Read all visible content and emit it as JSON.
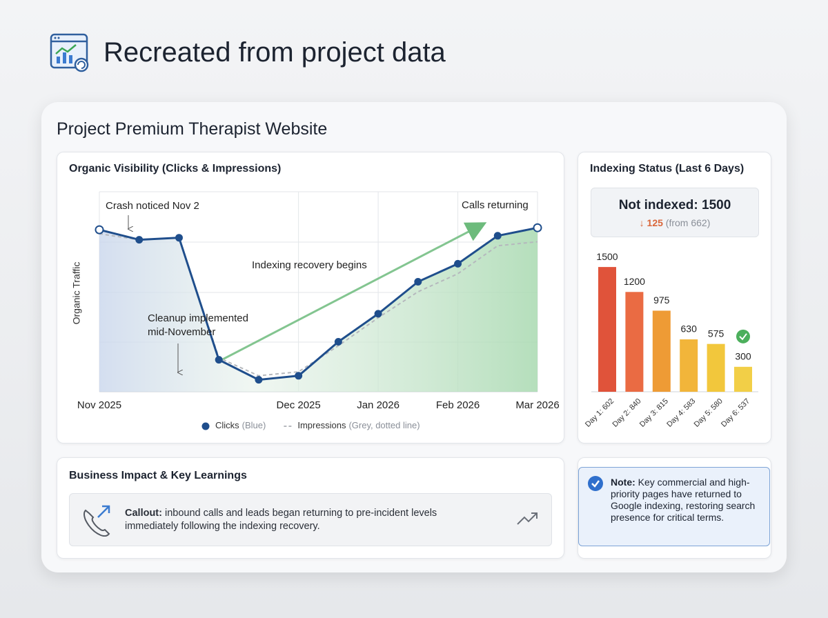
{
  "header": {
    "title": "Recreated from project data"
  },
  "project_title": "Project Premium Therapist Website",
  "chart_data": [
    {
      "type": "line",
      "title": "Organic Visibility (Clicks & Impressions)",
      "y_label": "Organic Traffic",
      "categories": [
        "Nov 2025",
        null,
        null,
        null,
        null,
        "Dec 2025",
        null,
        "Jan 2026",
        null,
        "Feb 2026",
        null,
        "Mar 2026"
      ],
      "ylim": [
        0,
        100
      ],
      "series": [
        {
          "name": "Clicks",
          "legend_note": "(Blue)",
          "color": "#1f4e8c",
          "values": [
            81,
            76,
            77,
            16,
            6,
            8,
            25,
            39,
            55,
            64,
            78,
            82
          ]
        },
        {
          "name": "Impressions",
          "legend_note": "(Grey, dotted line)",
          "color": "#b5b8bd",
          "dashed": true,
          "values": [
            79,
            76,
            77,
            17,
            8,
            10,
            23,
            37,
            50,
            59,
            73,
            75
          ]
        }
      ],
      "annotations": [
        "Crash noticed Nov 2",
        "Cleanup implemented",
        "mid-November",
        "Indexing recovery begins",
        "Calls returning"
      ]
    },
    {
      "type": "bar",
      "title": "Indexing Status (Last 6 Days)",
      "categories": [
        "Day 1: 602",
        "Day 2: 840",
        "Day 3: 815",
        "Day 4: 583",
        "Day 5: 580",
        "Day 6: 537"
      ],
      "values": [
        1500,
        1200,
        975,
        630,
        575,
        300
      ],
      "colors": [
        "#e0533a",
        "#ea6b43",
        "#ee9b35",
        "#f2b53a",
        "#f2c73c",
        "#f2cf47"
      ],
      "ylim": [
        0,
        1700
      ]
    }
  ],
  "indexing_summary": {
    "headline": "Not indexed: 1500",
    "change": "↓ 125",
    "change_note": "(from 662)"
  },
  "impact": {
    "title": "Business Impact & Key Learnings",
    "callout_label": "Callout:",
    "callout_text": "inbound calls and leads began returning to pre-incident levels immediately following the indexing recovery."
  },
  "note": {
    "label": "Note:",
    "text": "Key commercial and high-priority pages have returned to Google indexing, restoring search presence for critical terms."
  }
}
